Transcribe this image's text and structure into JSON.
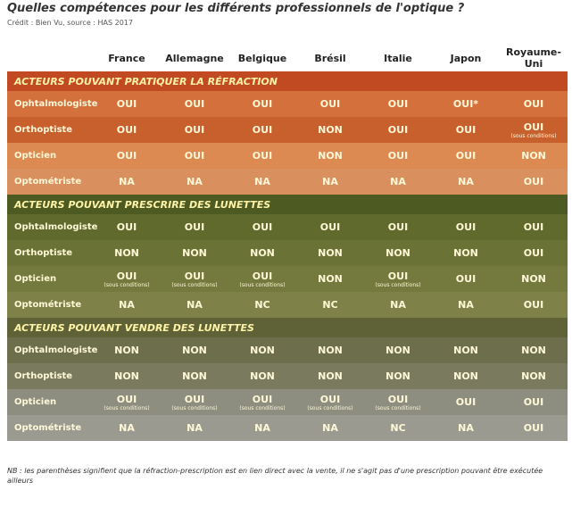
{
  "header": {
    "title": "Quelles compétences pour les différents professionnels de l'optique ?",
    "credit": "Crédit : Bien Vu, source : HAS 2017"
  },
  "table": {
    "columns": [
      "France",
      "Allemagne",
      "Belgique",
      "Brésil",
      "Italie",
      "Japon",
      "Royaume-Uni"
    ],
    "sections": [
      {
        "title": "ACTEURS POUVANT PRATIQUER LA RÉFRACTION",
        "rows": [
          {
            "label": "Ophtalmologiste",
            "cells": [
              "OUI",
              "OUI",
              "OUI",
              "OUI",
              "OUI",
              "OUI*",
              "OUI"
            ]
          },
          {
            "label": "Orthoptiste",
            "cells": [
              "OUI",
              "OUI",
              "OUI",
              "NON",
              "OUI",
              "OUI",
              {
                "main": "OUI",
                "sub": "(sous conditions)"
              }
            ]
          },
          {
            "label": "Opticien",
            "cells": [
              "OUI",
              "OUI",
              "OUI",
              "NON",
              "OUI",
              "OUI",
              "NON"
            ]
          },
          {
            "label": "Optométriste",
            "cells": [
              "NA",
              "NA",
              "NA",
              "NA",
              "NA",
              "NA",
              "OUI"
            ]
          }
        ]
      },
      {
        "title": "ACTEURS POUVANT PRESCRIRE DES LUNETTES",
        "rows": [
          {
            "label": "Ophtalmologiste",
            "cells": [
              "OUI",
              "OUI",
              "OUI",
              "OUI",
              "OUI",
              "OUI",
              "OUI"
            ]
          },
          {
            "label": "Orthoptiste",
            "cells": [
              "NON",
              "NON",
              "NON",
              "NON",
              "NON",
              "NON",
              "OUI"
            ]
          },
          {
            "label": "Opticien",
            "cells": [
              {
                "main": "OUI",
                "sub": "(sous conditions)"
              },
              {
                "main": "OUI",
                "sub": "(sous conditions)"
              },
              {
                "main": "OUI",
                "sub": "(sous conditions)"
              },
              "NON",
              {
                "main": "OUI",
                "sub": "(sous conditions)"
              },
              "OUI",
              "NON"
            ]
          },
          {
            "label": "Optométriste",
            "cells": [
              "NA",
              "NA",
              "NC",
              "NC",
              "NA",
              "NA",
              "OUI"
            ]
          }
        ]
      },
      {
        "title": "ACTEURS POUVANT VENDRE DES LUNETTES",
        "rows": [
          {
            "label": "Ophtalmologiste",
            "cells": [
              "NON",
              "NON",
              "NON",
              "NON",
              "NON",
              "NON",
              "NON"
            ]
          },
          {
            "label": "Orthoptiste",
            "cells": [
              "NON",
              "NON",
              "NON",
              "NON",
              "NON",
              "NON",
              "NON"
            ]
          },
          {
            "label": "Opticien",
            "cells": [
              {
                "main": "OUI",
                "sub": "(sous conditions)"
              },
              {
                "main": "OUI",
                "sub": "(sous conditions)"
              },
              {
                "main": "OUI",
                "sub": "(sous conditions)"
              },
              {
                "main": "OUI",
                "sub": "(sous conditions)"
              },
              {
                "main": "OUI",
                "sub": "(sous conditions)"
              },
              "OUI",
              "OUI"
            ]
          },
          {
            "label": "Optométriste",
            "cells": [
              "NA",
              "NA",
              "NA",
              "NA",
              "NC",
              "NA",
              "OUI"
            ]
          }
        ]
      }
    ]
  },
  "footnote": "NB : les parenthèses signifient que la réfraction-prescription est en lien direct avec la vente, il ne s'agit pas d'une prescription pouvant être exécutée ailleurs"
}
